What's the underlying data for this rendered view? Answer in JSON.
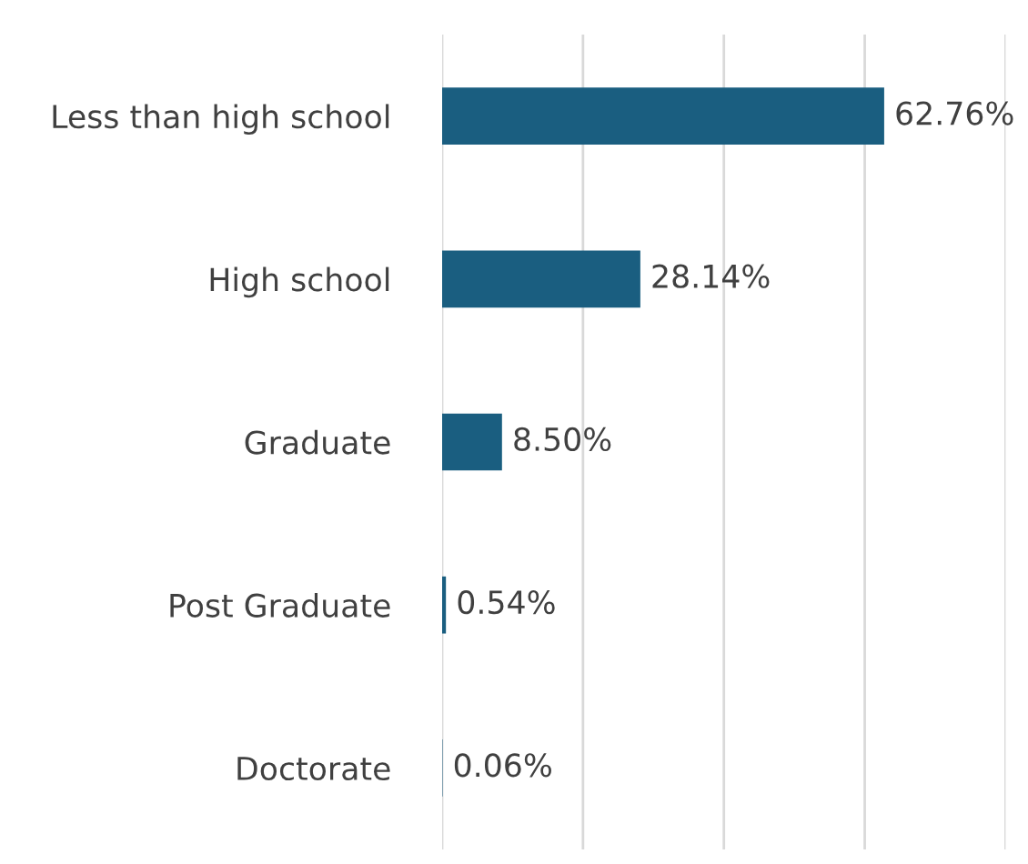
{
  "chart_data": {
    "type": "bar",
    "orientation": "horizontal",
    "categories": [
      "Less than high school",
      "High school",
      "Graduate",
      "Post Graduate",
      "Doctorate"
    ],
    "values": [
      62.76,
      28.14,
      8.5,
      0.54,
      0.06
    ],
    "value_labels": [
      "62.76%",
      "28.14%",
      "8.50%",
      "0.54%",
      "0.06%"
    ],
    "color": "#1a5e80",
    "xlim": [
      0,
      80
    ],
    "xticks": [
      {
        "value": 0,
        "label": null
      },
      {
        "value": 20,
        "label": null
      },
      {
        "value": 40,
        "label": null
      },
      {
        "value": 60,
        "label": null
      },
      {
        "value": 80,
        "label": null
      }
    ],
    "grid": "x",
    "tick_labels": "y"
  }
}
